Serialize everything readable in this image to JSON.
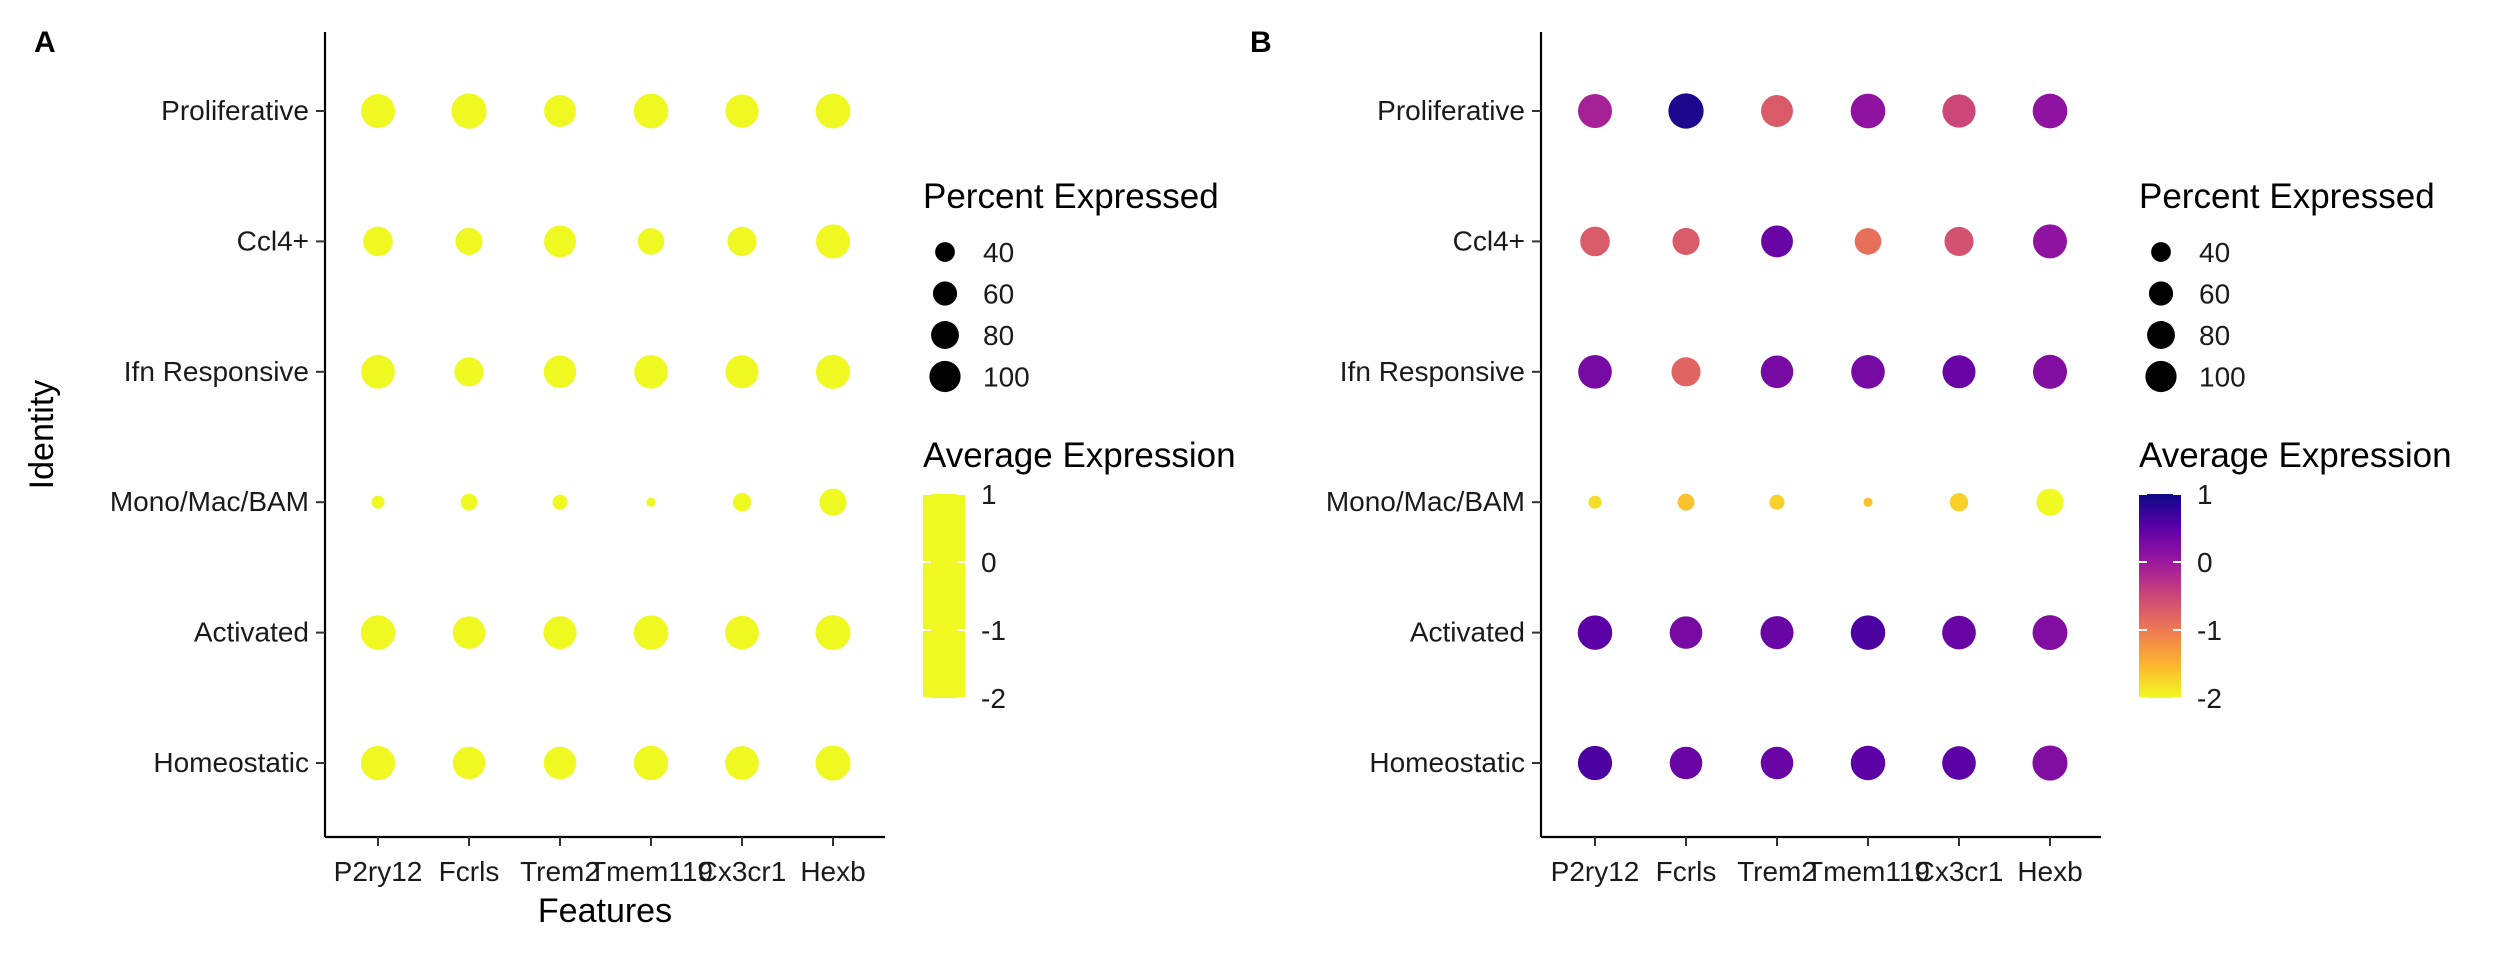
{
  "chart_data": [
    {
      "panel_label": "A",
      "type": "dotplot",
      "xlabel": "Features",
      "ylabel": "Identity",
      "features": [
        "P2ry12",
        "Fcrls",
        "Trem2",
        "Tmem119",
        "Cx3cr1",
        "Hexb"
      ],
      "identities": [
        "Proliferative",
        "Ccl4+",
        "Ifn Responsive",
        "Mono/Mac/BAM",
        "Activated",
        "Homeostatic"
      ],
      "percent_expressed": [
        [
          82,
          88,
          72,
          85,
          78,
          85
        ],
        [
          62,
          52,
          72,
          50,
          60,
          82
        ],
        [
          80,
          60,
          75,
          80,
          77,
          82
        ],
        [
          12,
          20,
          16,
          6,
          24,
          52
        ],
        [
          84,
          75,
          77,
          84,
          80,
          86
        ],
        [
          83,
          75,
          75,
          84,
          80,
          87
        ]
      ],
      "average_expression": [
        [
          -2,
          -2,
          -2,
          -2,
          -2,
          -2
        ],
        [
          -2,
          -2,
          -2,
          -2,
          -2,
          -2
        ],
        [
          -2,
          -2,
          -2,
          -2,
          -2,
          -2
        ],
        [
          -2,
          -2,
          -2,
          -2,
          -2,
          -2
        ],
        [
          -2,
          -2,
          -2,
          -2,
          -2,
          -2
        ],
        [
          -2,
          -2,
          -2,
          -2,
          -2,
          -2
        ]
      ],
      "size_legend": {
        "title": "Percent Expressed",
        "values": [
          40,
          60,
          80,
          100
        ]
      },
      "color_legend": {
        "title": "Average Expression",
        "ticks": [
          1,
          0,
          -1,
          -2
        ],
        "range": [
          -2,
          1
        ],
        "colors": [
          "#EFF821",
          "#EFF821"
        ]
      }
    },
    {
      "panel_label": "B",
      "type": "dotplot",
      "xlabel": "",
      "ylabel": "",
      "features": [
        "P2ry12",
        "Fcrls",
        "Trem2",
        "Tmem119",
        "Cx3cr1",
        "Hexb"
      ],
      "identities": [
        "Proliferative",
        "Ccl4+",
        "Ifn Responsive",
        "Mono/Mac/BAM",
        "Activated",
        "Homeostatic"
      ],
      "percent_expressed": [
        [
          82,
          88,
          72,
          85,
          78,
          85
        ],
        [
          62,
          52,
          72,
          50,
          60,
          82
        ],
        [
          80,
          60,
          75,
          80,
          77,
          82
        ],
        [
          12,
          20,
          16,
          6,
          24,
          52
        ],
        [
          84,
          75,
          77,
          84,
          80,
          86
        ],
        [
          83,
          75,
          75,
          84,
          80,
          87
        ]
      ],
      "average_expression": [
        [
          -0.1,
          0.9,
          -0.7,
          0.1,
          -0.5,
          0.1
        ],
        [
          -0.7,
          -0.7,
          0.4,
          -0.9,
          -0.6,
          0.1
        ],
        [
          0.3,
          -0.8,
          0.3,
          0.3,
          0.4,
          0.2
        ],
        [
          -1.8,
          -1.6,
          -1.7,
          -1.6,
          -1.7,
          -2.0
        ],
        [
          0.5,
          0.3,
          0.4,
          0.6,
          0.4,
          0.2
        ],
        [
          0.6,
          0.4,
          0.4,
          0.5,
          0.5,
          0.2
        ]
      ],
      "size_legend": {
        "title": "Percent Expressed",
        "values": [
          40,
          60,
          80,
          100
        ]
      },
      "color_legend": {
        "title": "Average Expression",
        "ticks": [
          1,
          0,
          -1,
          -2
        ],
        "range": [
          -2,
          1
        ],
        "colors": [
          "#F0F921",
          "#FDB42F",
          "#ED7953",
          "#CC4778",
          "#9C179E",
          "#5C01A6",
          "#0D0887"
        ]
      }
    }
  ]
}
